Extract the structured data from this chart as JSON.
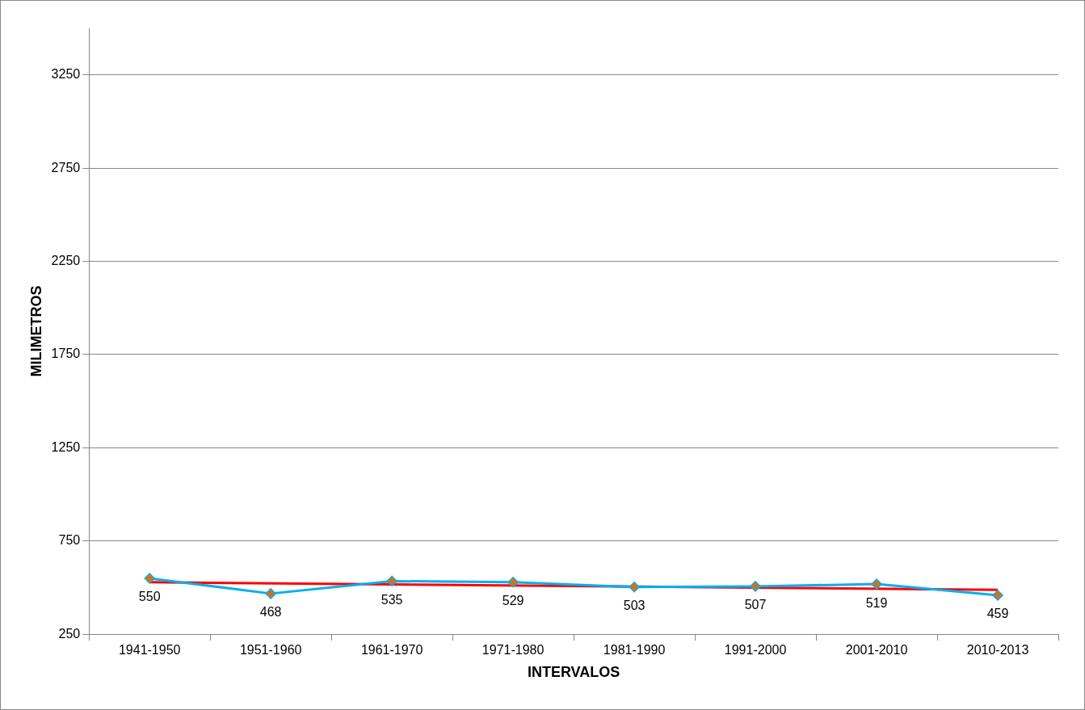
{
  "chart_data": {
    "type": "line",
    "xlabel": "INTERVALOS",
    "ylabel": "MILIMETROS",
    "categories": [
      "1941-1950",
      "1951-1960",
      "1961-1970",
      "1971-1980",
      "1981-1990",
      "1991-2000",
      "2001-2010",
      "2010-2013"
    ],
    "series": [
      {
        "color": "#00b0f0",
        "values": [
          550,
          468,
          535,
          529,
          503,
          507,
          519,
          459
        ],
        "colors": [
          "#e46c0a",
          "#e46c0a",
          "#e46c0a",
          "#e46c0a",
          "#e46c0a",
          "#e46c0a",
          "#e46c0a",
          "#e46c0a"
        ],
        "value_labels": [
          "550",
          "468",
          "535",
          "529",
          "503",
          "507",
          "519",
          "459"
        ],
        "marker": "diamond"
      },
      {
        "color": "#ff0000",
        "x": [
          "1941-1950",
          "2010-2013"
        ],
        "values": [
          529,
          488
        ],
        "marker": "none"
      }
    ],
    "ylim": [
      250,
      3500
    ],
    "yticks": [
      250,
      750,
      1250,
      1750,
      2250,
      2750,
      3250
    ],
    "grid": "y",
    "legend": false,
    "line_style": "solid"
  }
}
